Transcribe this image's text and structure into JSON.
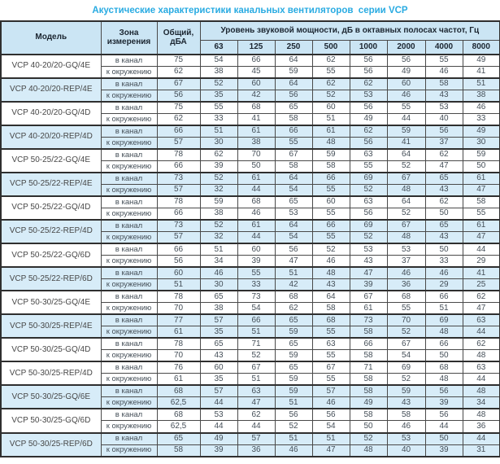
{
  "title": "Акустические характеристики канальных вентиляторов  серии VCP",
  "table": {
    "col_model": "Модель",
    "col_zone": "Зона измерения",
    "col_total": "Общий, дБА",
    "col_freq_group": "Уровень звуковой мощности, дБ в октавных полосах частот, Гц",
    "frequencies": [
      "63",
      "125",
      "250",
      "500",
      "1000",
      "2000",
      "4000",
      "8000"
    ],
    "zone_in": "в канал",
    "zone_out": "к окружению",
    "colors": {
      "title_accent": "#29abe2",
      "header_bg": "#cbe5f4",
      "shaded_row_bg": "#d7ecf8",
      "border": "#4a4a4a"
    },
    "rows": [
      {
        "model": "VCP 40-20/20-GQ/4E",
        "shaded": false,
        "in": {
          "total": "75",
          "f": [
            "54",
            "66",
            "64",
            "62",
            "56",
            "56",
            "55",
            "49"
          ]
        },
        "out": {
          "total": "62",
          "f": [
            "38",
            "45",
            "59",
            "55",
            "56",
            "49",
            "46",
            "41"
          ]
        }
      },
      {
        "model": "VCP 40-20/20-REP/4E",
        "shaded": true,
        "in": {
          "total": "67",
          "f": [
            "52",
            "60",
            "64",
            "62",
            "62",
            "60",
            "58",
            "51"
          ]
        },
        "out": {
          "total": "56",
          "f": [
            "35",
            "42",
            "56",
            "52",
            "53",
            "46",
            "43",
            "38"
          ]
        }
      },
      {
        "model": "VCP 40-20/20-GQ/4D",
        "shaded": false,
        "in": {
          "total": "75",
          "f": [
            "55",
            "68",
            "65",
            "60",
            "56",
            "55",
            "53",
            "46"
          ]
        },
        "out": {
          "total": "62",
          "f": [
            "33",
            "41",
            "58",
            "51",
            "49",
            "44",
            "40",
            "33"
          ]
        }
      },
      {
        "model": "VCP 40-20/20-REP/4D",
        "shaded": true,
        "in": {
          "total": "66",
          "f": [
            "51",
            "61",
            "66",
            "61",
            "62",
            "59",
            "56",
            "49"
          ]
        },
        "out": {
          "total": "57",
          "f": [
            "30",
            "38",
            "55",
            "48",
            "56",
            "41",
            "37",
            "30"
          ]
        }
      },
      {
        "model": "VCP 50-25/22-GQ/4E",
        "shaded": false,
        "in": {
          "total": "78",
          "f": [
            "62",
            "70",
            "67",
            "59",
            "63",
            "64",
            "62",
            "59"
          ]
        },
        "out": {
          "total": "66",
          "f": [
            "39",
            "50",
            "58",
            "58",
            "55",
            "52",
            "47",
            "50"
          ]
        }
      },
      {
        "model": "VCP 50-25/22-REP/4E",
        "shaded": true,
        "in": {
          "total": "73",
          "f": [
            "52",
            "61",
            "64",
            "66",
            "69",
            "67",
            "65",
            "61"
          ]
        },
        "out": {
          "total": "57",
          "f": [
            "32",
            "44",
            "54",
            "55",
            "52",
            "48",
            "43",
            "47"
          ]
        }
      },
      {
        "model": "VCP 50-25/22-GQ/4D",
        "shaded": false,
        "in": {
          "total": "78",
          "f": [
            "59",
            "68",
            "65",
            "60",
            "63",
            "64",
            "62",
            "58"
          ]
        },
        "out": {
          "total": "66",
          "f": [
            "38",
            "46",
            "53",
            "55",
            "56",
            "52",
            "50",
            "55"
          ]
        }
      },
      {
        "model": "VCP 50-25/22-REP/4D",
        "shaded": true,
        "in": {
          "total": "73",
          "f": [
            "52",
            "61",
            "64",
            "66",
            "69",
            "67",
            "65",
            "61"
          ]
        },
        "out": {
          "total": "57",
          "f": [
            "32",
            "44",
            "54",
            "55",
            "52",
            "48",
            "43",
            "47"
          ]
        }
      },
      {
        "model": "VCP 50-25/22-GQ/6D",
        "shaded": false,
        "in": {
          "total": "66",
          "f": [
            "51",
            "60",
            "56",
            "52",
            "53",
            "53",
            "50",
            "44"
          ]
        },
        "out": {
          "total": "56",
          "f": [
            "34",
            "39",
            "47",
            "46",
            "43",
            "37",
            "33",
            "29"
          ]
        }
      },
      {
        "model": "VCP 50-25/22-REP/6D",
        "shaded": true,
        "in": {
          "total": "60",
          "f": [
            "46",
            "55",
            "51",
            "48",
            "47",
            "46",
            "46",
            "41"
          ]
        },
        "out": {
          "total": "51",
          "f": [
            "30",
            "33",
            "42",
            "43",
            "39",
            "36",
            "29",
            "25"
          ]
        }
      },
      {
        "model": "VCP 50-30/25-GQ/4E",
        "shaded": false,
        "in": {
          "total": "78",
          "f": [
            "65",
            "73",
            "68",
            "64",
            "67",
            "68",
            "66",
            "62"
          ]
        },
        "out": {
          "total": "70",
          "f": [
            "38",
            "54",
            "62",
            "58",
            "61",
            "55",
            "51",
            "47"
          ]
        }
      },
      {
        "model": "VCP 50-30/25-REP/4E",
        "shaded": true,
        "in": {
          "total": "77",
          "f": [
            "57",
            "66",
            "65",
            "68",
            "73",
            "70",
            "69",
            "63"
          ]
        },
        "out": {
          "total": "61",
          "f": [
            "35",
            "51",
            "59",
            "55",
            "58",
            "52",
            "48",
            "44"
          ]
        }
      },
      {
        "model": "VCP 50-30/25-GQ/4D",
        "shaded": false,
        "in": {
          "total": "78",
          "f": [
            "65",
            "71",
            "65",
            "63",
            "66",
            "67",
            "66",
            "62"
          ]
        },
        "out": {
          "total": "70",
          "f": [
            "43",
            "52",
            "59",
            "55",
            "58",
            "54",
            "50",
            "48"
          ]
        }
      },
      {
        "model": "VCP 50-30/25-REP/4D",
        "shaded": false,
        "in": {
          "total": "76",
          "f": [
            "60",
            "67",
            "65",
            "67",
            "71",
            "69",
            "68",
            "63"
          ]
        },
        "out": {
          "total": "61",
          "f": [
            "35",
            "51",
            "59",
            "55",
            "58",
            "52",
            "48",
            "44"
          ]
        }
      },
      {
        "model": "VCP 50-30/25-GQ/6E",
        "shaded": true,
        "in": {
          "total": "68",
          "f": [
            "57",
            "63",
            "59",
            "57",
            "58",
            "59",
            "56",
            "48"
          ]
        },
        "out": {
          "total": "62,5",
          "f": [
            "44",
            "47",
            "51",
            "46",
            "49",
            "43",
            "39",
            "34"
          ]
        }
      },
      {
        "model": "VCP 50-30/25-GQ/6D",
        "shaded": false,
        "in": {
          "total": "68",
          "f": [
            "53",
            "62",
            "56",
            "56",
            "58",
            "58",
            "56",
            "48"
          ]
        },
        "out": {
          "total": "62,5",
          "f": [
            "44",
            "44",
            "52",
            "54",
            "50",
            "46",
            "44",
            "36"
          ]
        }
      },
      {
        "model": "VCP 50-30/25-REP/6D",
        "shaded": true,
        "in": {
          "total": "65",
          "f": [
            "49",
            "57",
            "51",
            "51",
            "52",
            "53",
            "50",
            "44"
          ]
        },
        "out": {
          "total": "58",
          "f": [
            "39",
            "36",
            "46",
            "47",
            "48",
            "40",
            "39",
            "31"
          ]
        }
      }
    ]
  }
}
